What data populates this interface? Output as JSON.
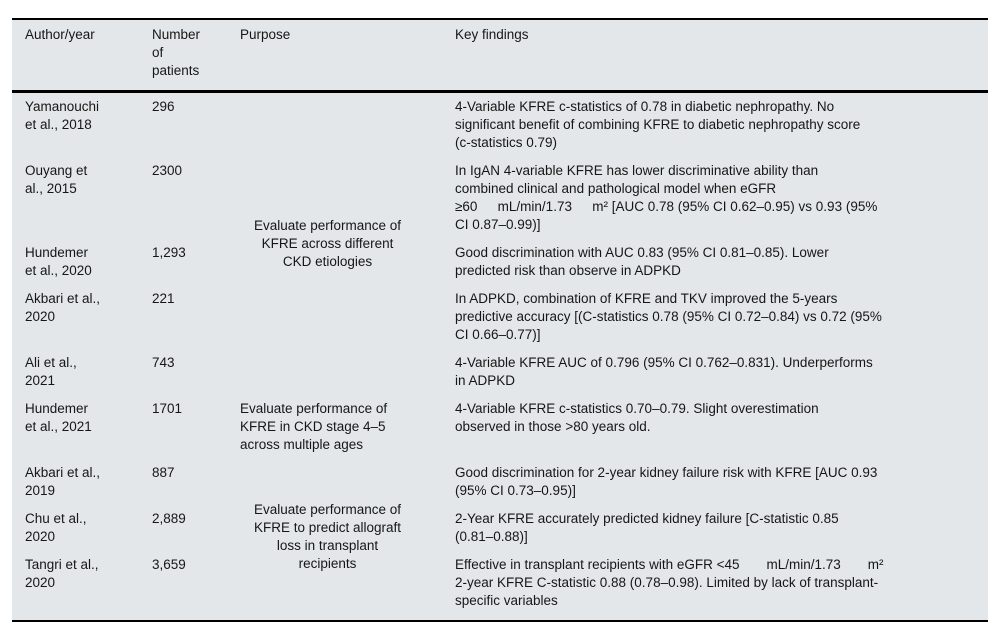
{
  "table": {
    "headers": {
      "author": "Author/year",
      "patients": "Number\nof\npatients",
      "purpose": "Purpose",
      "findings": "Key findings"
    },
    "purpose_groups": [
      {
        "start": 0,
        "span": 5,
        "align": "center",
        "text": "Evaluate performance of\nKFRE across different\nCKD etiologies"
      },
      {
        "start": 5,
        "span": 1,
        "align": "left",
        "text": "Evaluate performance of\nKFRE in CKD stage 4–5\nacross multiple ages"
      },
      {
        "start": 6,
        "span": 3,
        "align": "center",
        "text": "Evaluate performance of\nKFRE to predict allograft\nloss in transplant\nrecipients"
      }
    ],
    "rows": [
      {
        "author": "Yamanouchi\net al., 2018",
        "patients": "296",
        "findings": "4-Variable KFRE c-statistics of 0.78 in diabetic nephropathy. No\nsignificant benefit of combining KFRE to diabetic nephropathy score\n(c-statistics 0.79)"
      },
      {
        "author": "Ouyang et\nal., 2015",
        "patients": "2300",
        "findings": "In IgAN 4-variable KFRE has lower discriminative ability than\ncombined clinical and pathological model when eGFR\n≥60  mL/min/1.73  m² [AUC 0.78 (95% CI 0.62–0.95) vs 0.93 (95%\nCI 0.87–0.99)]"
      },
      {
        "author": "Hundemer\net al., 2020",
        "patients": "1,293",
        "findings": "Good discrimination with AUC 0.83 (95% CI 0.81–0.85). Lower\npredicted risk than observe in ADPKD"
      },
      {
        "author": "Akbari et al.,\n2020",
        "patients": "221",
        "findings": "In ADPKD, combination of KFRE and TKV improved the 5-years\npredictive accuracy [(C-statistics 0.78 (95% CI 0.72–0.84) vs 0.72 (95%\nCI 0.66–0.77)]"
      },
      {
        "author": "Ali et al.,\n2021",
        "patients": "743",
        "findings": "4-Variable KFRE AUC of 0.796 (95% CI 0.762–0.831). Underperforms\nin ADPKD"
      },
      {
        "author": "Hundemer\net al., 2021",
        "patients": "1701",
        "findings": "4-Variable KFRE c-statistics 0.70–0.79. Slight overestimation\nobserved in those >80 years old."
      },
      {
        "author": "Akbari et al.,\n2019",
        "patients": "887",
        "findings": "Good discrimination for 2-year kidney failure risk with KFRE [AUC 0.93\n(95% CI 0.73–0.95)]"
      },
      {
        "author": "Chu et al.,\n2020",
        "patients": "2,889",
        "findings": "2-Year KFRE accurately predicted kidney failure [C-statistic 0.85\n(0.81–0.88)]"
      },
      {
        "author": "Tangri et al.,\n2020",
        "patients": "3,659",
        "findings": "Effective in transplant recipients with eGFR <45  mL/min/1.73  m²\n2-year KFRE C-statistic 0.88 (0.78–0.98). Limited by lack of transplant-\nspecific variables"
      }
    ]
  }
}
